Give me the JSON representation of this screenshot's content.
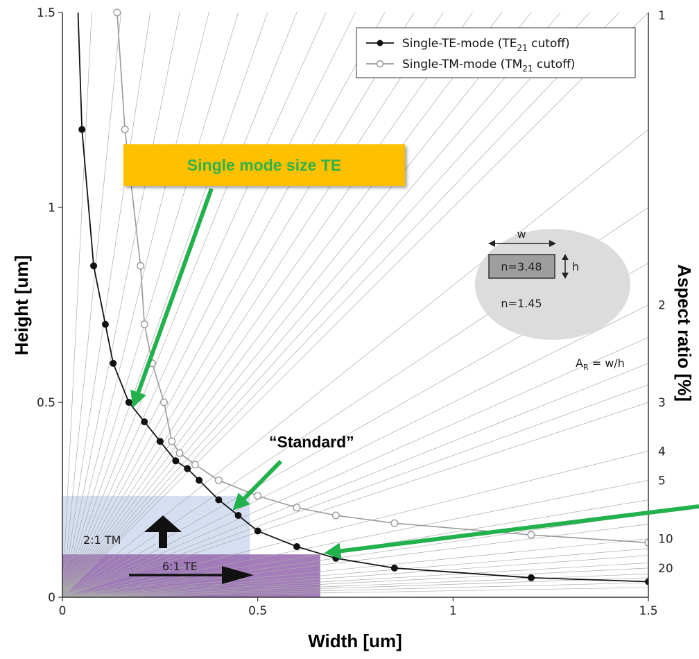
{
  "chart_data": {
    "type": "line",
    "xlabel": "Width [um]",
    "ylabel": "Height [um]",
    "y2label": "Aspect ratio [%]",
    "xlim": [
      0,
      1.5
    ],
    "ylim": [
      0,
      1.5
    ],
    "x_ticks": [
      "0",
      "0.5",
      "1",
      "1.5"
    ],
    "y_ticks": [
      "0",
      "0.5",
      "1",
      "1.5"
    ],
    "aspect_ratio_ticks": [
      "1",
      "2",
      "3",
      "4",
      "5",
      "10",
      "20"
    ],
    "grid": false,
    "legend": {
      "position": "top-right",
      "entries": [
        {
          "prefix": "Single-TE-mode (TE",
          "sub": "21",
          "suffix": " cutoff)"
        },
        {
          "prefix": "Single-TM-mode (TM",
          "sub": "21",
          "suffix": " cutoff)"
        }
      ]
    },
    "series": [
      {
        "name": "Single-TE-mode (TE21 cutoff)",
        "color": "#111111",
        "marker": "filled-circle",
        "x": [
          0.04,
          0.05,
          0.08,
          0.11,
          0.13,
          0.17,
          0.21,
          0.25,
          0.29,
          0.32,
          0.35,
          0.4,
          0.45,
          0.5,
          0.6,
          0.7,
          0.85,
          1.2,
          1.5
        ],
        "y": [
          1.5,
          1.2,
          0.85,
          0.7,
          0.6,
          0.5,
          0.45,
          0.4,
          0.35,
          0.33,
          0.3,
          0.25,
          0.21,
          0.17,
          0.13,
          0.1,
          0.075,
          0.05,
          0.04
        ]
      },
      {
        "name": "Single-TM-mode (TM21 cutoff)",
        "color": "#999999",
        "marker": "open-circle",
        "x": [
          0.14,
          0.16,
          0.2,
          0.21,
          0.23,
          0.26,
          0.28,
          0.3,
          0.34,
          0.4,
          0.5,
          0.6,
          0.7,
          0.85,
          1.2,
          1.5
        ],
        "y": [
          1.5,
          1.2,
          0.85,
          0.7,
          0.6,
          0.5,
          0.4,
          0.37,
          0.34,
          0.3,
          0.26,
          0.23,
          0.21,
          0.19,
          0.16,
          0.14
        ]
      }
    ],
    "regions": [
      {
        "label": "2:1 TM",
        "x_max": 0.48,
        "y_max": 0.26,
        "color": "#c8d4ee"
      },
      {
        "label": "6:1 TE",
        "x_max": 0.66,
        "y_max": 0.11,
        "color": "#9a6fb3"
      }
    ],
    "inset": {
      "width_label": "w",
      "height_label": "h",
      "core_label": "n=3.48",
      "cladding_label": "n=1.45",
      "formula_prefix": "A",
      "formula_sub": "R",
      "formula_suffix": " = w/h"
    }
  },
  "callouts": {
    "single_mode": "Single mode size TE",
    "standard": "“Standard”"
  },
  "colors": {
    "callout_box": "#ffc000",
    "callout_text": "#2fb34a",
    "arrow": "#22b14c"
  }
}
